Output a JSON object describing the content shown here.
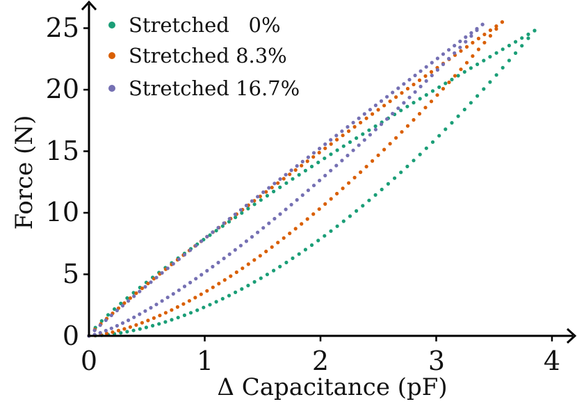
{
  "chart_data": {
    "type": "scatter",
    "xlabel": "Δ Capacitance (pF)",
    "ylabel": "Force (N)",
    "xlim": [
      0,
      4.2
    ],
    "ylim": [
      0,
      25.8
    ],
    "xticks": [
      "0",
      "1",
      "2",
      "3",
      "4"
    ],
    "yticks": [
      "0",
      "5",
      "10",
      "15",
      "20",
      "25"
    ],
    "legend_position": "top-left",
    "grid": false,
    "series": [
      {
        "name": "Stretched   0%",
        "color": "#1b9e77",
        "max_x": 3.85,
        "max_y": 24.8,
        "loading_exponent": 1.75,
        "unloading_exponent": 0.85
      },
      {
        "name": "Stretched 8.3%",
        "color": "#d95f02",
        "max_x": 3.57,
        "max_y": 25.5,
        "loading_exponent": 1.55,
        "unloading_exponent": 0.92
      },
      {
        "name": "Stretched 16.7%",
        "color": "#7570b3",
        "max_x": 3.4,
        "max_y": 25.3,
        "loading_exponent": 1.3,
        "unloading_exponent": 0.95
      }
    ]
  }
}
